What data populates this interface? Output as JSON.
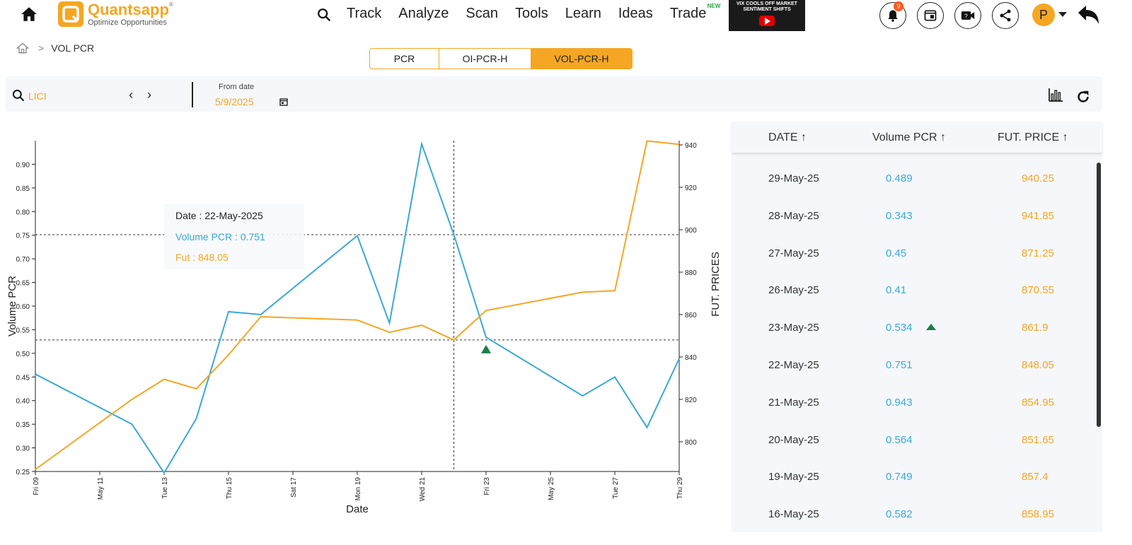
{
  "nav": {
    "brand": "Quantsapp",
    "brand_mark": "®",
    "tagline": "Optimize Opportunities",
    "items": [
      "Track",
      "Analyze",
      "Scan",
      "Tools",
      "Learn",
      "Ideas",
      "Trade"
    ],
    "trade_badge": "NEW",
    "promo_title": "VIX COOLS OFF MARKET SENTIMENT SHIFTS",
    "notification_count": "9",
    "avatar_initial": "P"
  },
  "breadcrumb": {
    "current": "VOL PCR"
  },
  "tabs": [
    {
      "label": "PCR",
      "active": false
    },
    {
      "label": "OI-PCR-H",
      "active": false
    },
    {
      "label": "VOL-PCR-H",
      "active": true
    }
  ],
  "filter": {
    "symbol": "LICI",
    "prev": "‹",
    "next": "›",
    "from_date_label": "From date",
    "from_date_value": "5/9/2025"
  },
  "tooltip": {
    "date": "Date : 22-May-2025",
    "pcr": "Volume PCR : 0.751",
    "fut": "Fut : 848.05"
  },
  "chart_data": {
    "type": "line",
    "xlabel": "Date",
    "ylabel_left": "Volume PCR",
    "ylabel_right": "FUT. PRICES",
    "x_tick_labels": [
      "Fri 09",
      "May 11",
      "Tue 13",
      "Thu 15",
      "Sat 17",
      "Mon 19",
      "Wed 21",
      "Fri 23",
      "May 25",
      "Tue 27",
      "Thu 29"
    ],
    "x_day_range": [
      9,
      29
    ],
    "left_ylim": [
      0.25,
      0.95
    ],
    "left_ticks": [
      "0.25",
      "0.30",
      "0.35",
      "0.40",
      "0.45",
      "0.50",
      "0.55",
      "0.60",
      "0.65",
      "0.70",
      "0.75",
      "0.80",
      "0.85",
      "0.90"
    ],
    "right_ylim": [
      786,
      942
    ],
    "right_ticks": [
      "800",
      "820",
      "840",
      "860",
      "880",
      "900",
      "920",
      "940"
    ],
    "series": [
      {
        "name": "Volume PCR",
        "color": "#3aa8d8",
        "axis": "left",
        "points": [
          {
            "day": 9,
            "value": 0.456
          },
          {
            "day": 12,
            "value": 0.35
          },
          {
            "day": 13,
            "value": 0.247
          },
          {
            "day": 14,
            "value": 0.362
          },
          {
            "day": 15,
            "value": 0.588
          },
          {
            "day": 16,
            "value": 0.582
          },
          {
            "day": 19,
            "value": 0.749
          },
          {
            "day": 20,
            "value": 0.564
          },
          {
            "day": 21,
            "value": 0.943
          },
          {
            "day": 22,
            "value": 0.751
          },
          {
            "day": 23,
            "value": 0.534
          },
          {
            "day": 26,
            "value": 0.41
          },
          {
            "day": 27,
            "value": 0.45
          },
          {
            "day": 28,
            "value": 0.343
          },
          {
            "day": 29,
            "value": 0.489
          }
        ]
      },
      {
        "name": "FUT. PRICE",
        "color": "#f5a623",
        "axis": "right",
        "points": [
          {
            "day": 9,
            "value": 787
          },
          {
            "day": 12,
            "value": 820
          },
          {
            "day": 13,
            "value": 829.5
          },
          {
            "day": 14,
            "value": 825
          },
          {
            "day": 15,
            "value": 841
          },
          {
            "day": 16,
            "value": 859
          },
          {
            "day": 19,
            "value": 857.4
          },
          {
            "day": 20,
            "value": 851.65
          },
          {
            "day": 21,
            "value": 854.95
          },
          {
            "day": 22,
            "value": 848.05
          },
          {
            "day": 23,
            "value": 861.9
          },
          {
            "day": 26,
            "value": 870.55
          },
          {
            "day": 27,
            "value": 871.25
          },
          {
            "day": 28,
            "value": 941.85
          },
          {
            "day": 29,
            "value": 940.25
          }
        ]
      }
    ],
    "crosshair": {
      "day": 22,
      "pcr": 0.751,
      "fut": 848.05
    },
    "marker": {
      "day": 23,
      "shape": "up-triangle",
      "color": "#1a7f4b"
    }
  },
  "table": {
    "headers": {
      "date": "DATE",
      "pcr": "Volume PCR",
      "fut": "FUT. PRICE",
      "sort_arrow": "↑"
    },
    "rows": [
      {
        "date": "29-May-25",
        "pcr": "0.489",
        "fut": "940.25"
      },
      {
        "date": "28-May-25",
        "pcr": "0.343",
        "fut": "941.85"
      },
      {
        "date": "27-May-25",
        "pcr": "0.45",
        "fut": "871.25"
      },
      {
        "date": "26-May-25",
        "pcr": "0.41",
        "fut": "870.55"
      },
      {
        "date": "23-May-25",
        "pcr": "0.534",
        "fut": "861.9",
        "marker": true
      },
      {
        "date": "22-May-25",
        "pcr": "0.751",
        "fut": "848.05"
      },
      {
        "date": "21-May-25",
        "pcr": "0.943",
        "fut": "854.95"
      },
      {
        "date": "20-May-25",
        "pcr": "0.564",
        "fut": "851.65"
      },
      {
        "date": "19-May-25",
        "pcr": "0.749",
        "fut": "857.4"
      },
      {
        "date": "16-May-25",
        "pcr": "0.582",
        "fut": "858.95"
      }
    ]
  }
}
